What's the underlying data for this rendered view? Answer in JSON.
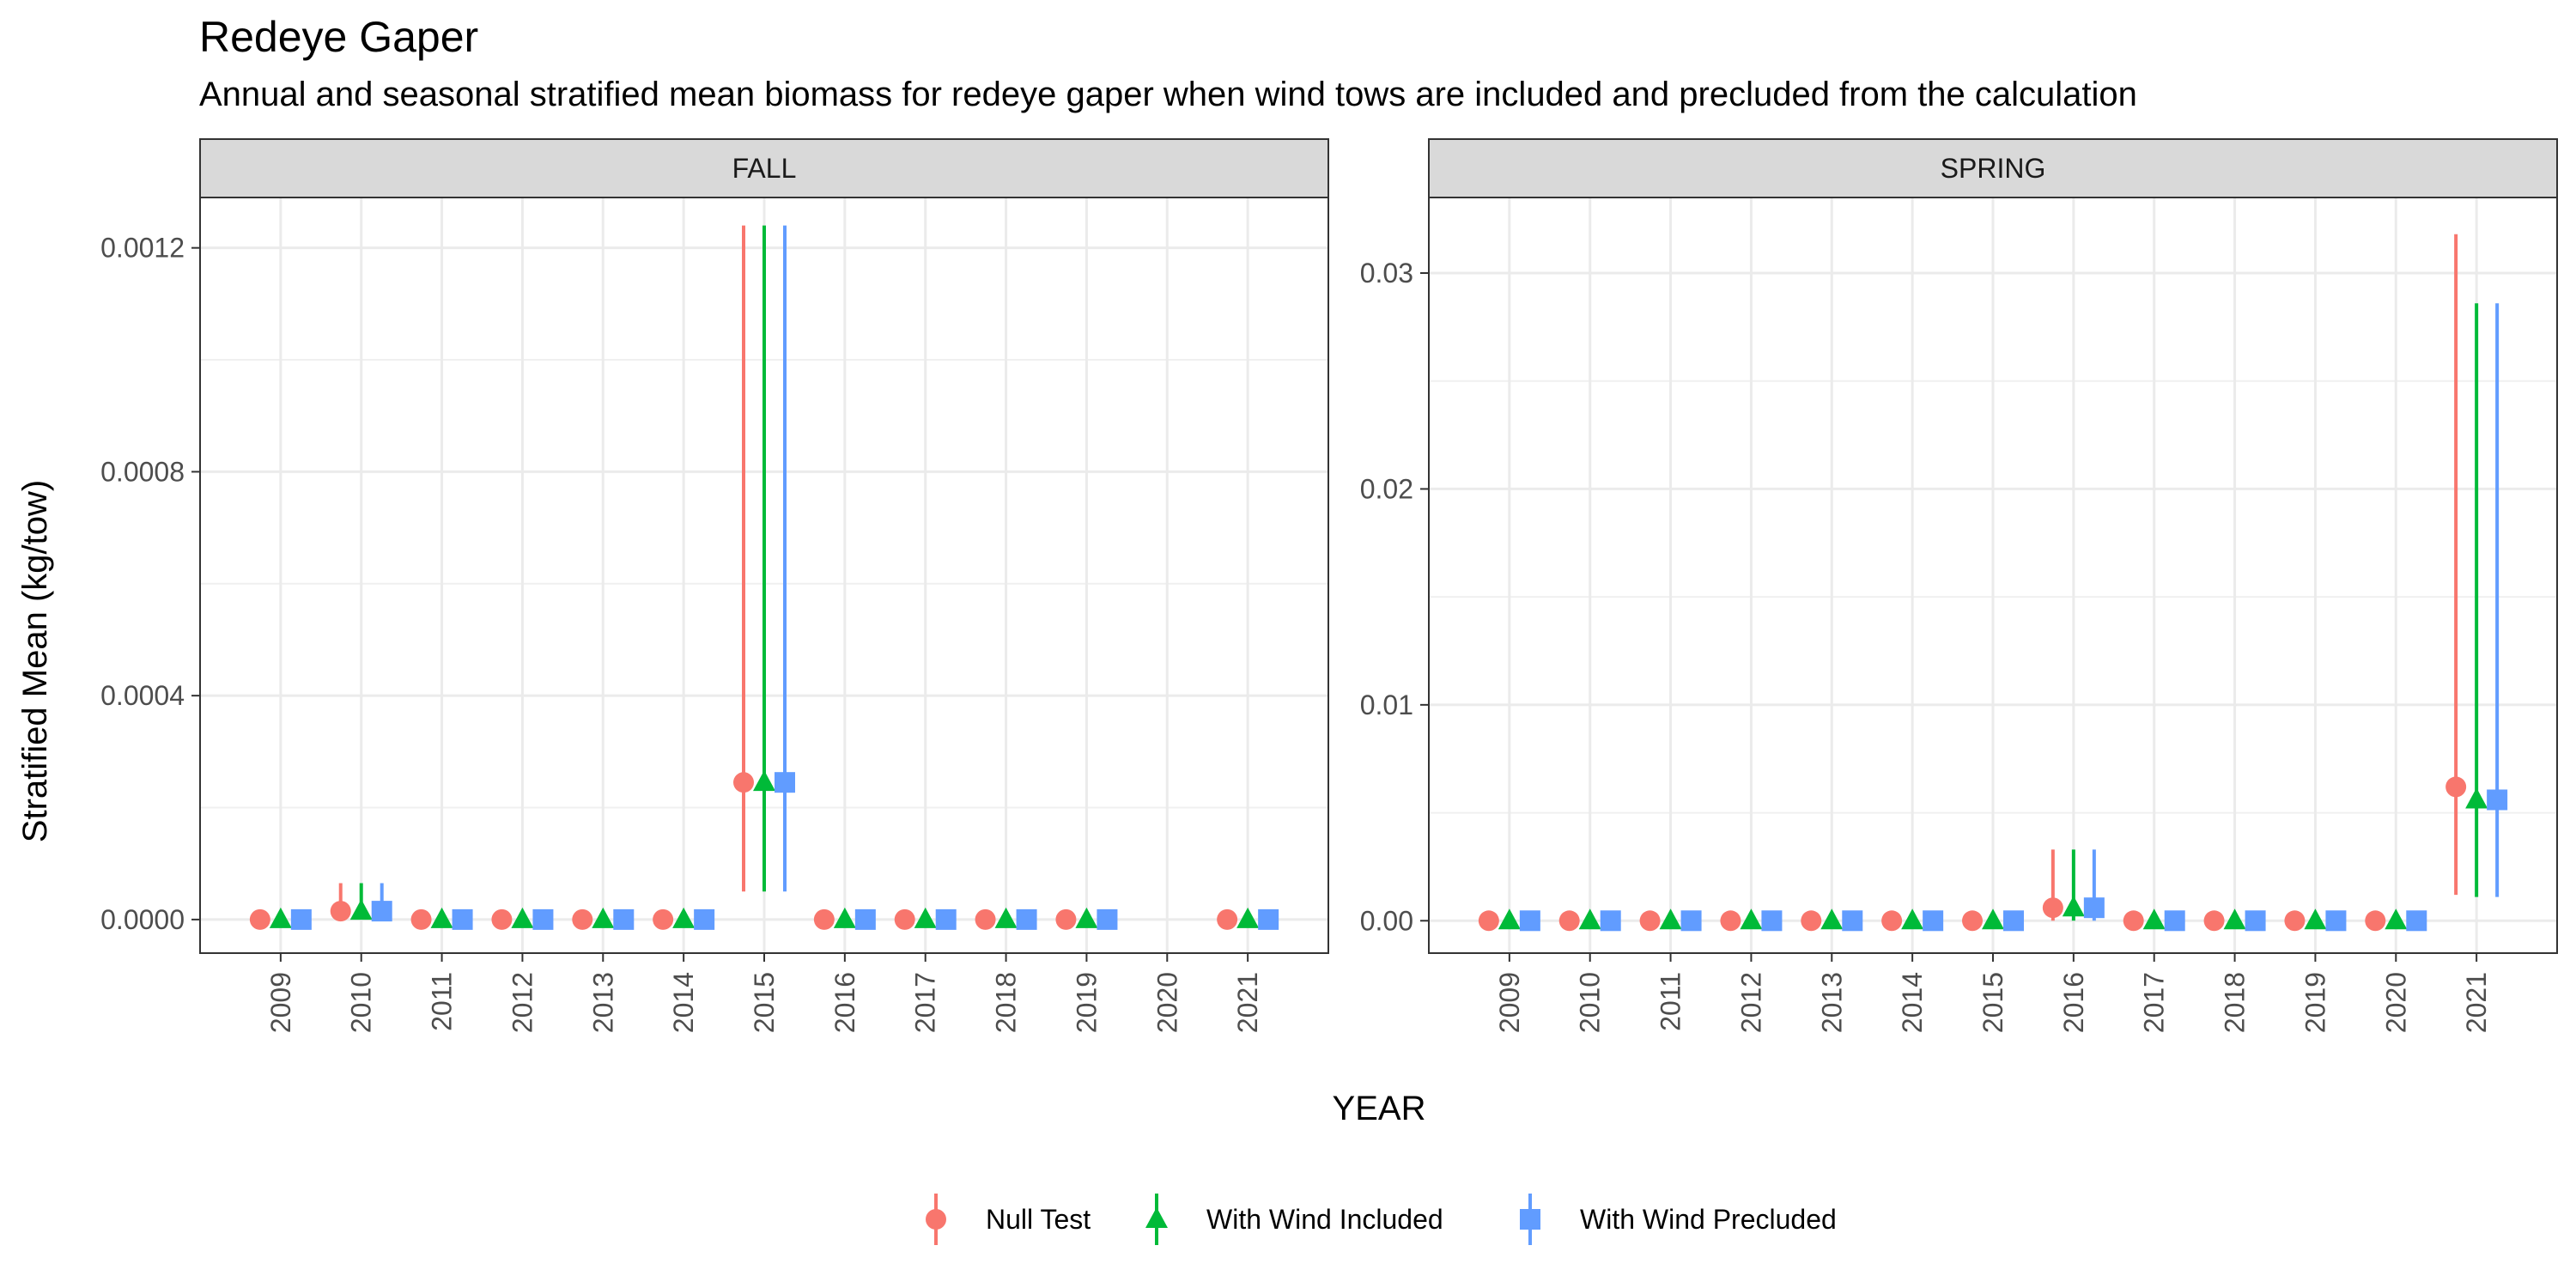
{
  "title": "Redeye Gaper",
  "subtitle": "Annual and seasonal stratified mean biomass for redeye gaper when wind tows are included and precluded from the calculation",
  "chart_data": {
    "type": "scatter",
    "error_bars": true,
    "xlabel": "YEAR",
    "ylabel": "Stratified Mean (kg/tow)",
    "series": [
      {
        "name": "Null Test",
        "color": "#F8766D",
        "shape": "circle"
      },
      {
        "name": "With Wind Included",
        "color": "#00BA38",
        "shape": "triangle"
      },
      {
        "name": "With Wind Precluded",
        "color": "#619CFF",
        "shape": "square"
      }
    ],
    "legend_position": "bottom",
    "grid": true,
    "panels": [
      {
        "strip": "FALL",
        "x": [
          "2009",
          "2010",
          "2011",
          "2012",
          "2013",
          "2014",
          "2015",
          "2016",
          "2017",
          "2018",
          "2019",
          "2020",
          "2021"
        ],
        "ylim": [
          -6e-05,
          0.00129
        ],
        "yticks": [
          0,
          0.0004,
          0.0008,
          0.0012
        ],
        "ytick_labels": [
          "0.0000",
          "0.0004",
          "0.0008",
          "0.0012"
        ],
        "values": {
          "Null Test": [
            {
              "x": "2009",
              "y": 0,
              "lo": 0,
              "hi": 0
            },
            {
              "x": "2010",
              "y": 1.5e-05,
              "lo": 0,
              "hi": 6.5e-05
            },
            {
              "x": "2011",
              "y": 0,
              "lo": 0,
              "hi": 0
            },
            {
              "x": "2012",
              "y": 0,
              "lo": 0,
              "hi": 0
            },
            {
              "x": "2013",
              "y": 0,
              "lo": 0,
              "hi": 0
            },
            {
              "x": "2014",
              "y": 0,
              "lo": 0,
              "hi": 0
            },
            {
              "x": "2015",
              "y": 0.000245,
              "lo": 5e-05,
              "hi": 0.00124
            },
            {
              "x": "2016",
              "y": 0,
              "lo": 0,
              "hi": 0
            },
            {
              "x": "2017",
              "y": 0,
              "lo": 0,
              "hi": 0
            },
            {
              "x": "2018",
              "y": 0,
              "lo": 0,
              "hi": 0
            },
            {
              "x": "2019",
              "y": 0,
              "lo": 0,
              "hi": 0
            },
            {
              "x": "2021",
              "y": 0,
              "lo": 0,
              "hi": 0
            }
          ],
          "With Wind Included": [
            {
              "x": "2009",
              "y": 0,
              "lo": 0,
              "hi": 0
            },
            {
              "x": "2010",
              "y": 1.5e-05,
              "lo": 0,
              "hi": 6.5e-05
            },
            {
              "x": "2011",
              "y": 0,
              "lo": 0,
              "hi": 0
            },
            {
              "x": "2012",
              "y": 0,
              "lo": 0,
              "hi": 0
            },
            {
              "x": "2013",
              "y": 0,
              "lo": 0,
              "hi": 0
            },
            {
              "x": "2014",
              "y": 0,
              "lo": 0,
              "hi": 0
            },
            {
              "x": "2015",
              "y": 0.000245,
              "lo": 5e-05,
              "hi": 0.00124
            },
            {
              "x": "2016",
              "y": 0,
              "lo": 0,
              "hi": 0
            },
            {
              "x": "2017",
              "y": 0,
              "lo": 0,
              "hi": 0
            },
            {
              "x": "2018",
              "y": 0,
              "lo": 0,
              "hi": 0
            },
            {
              "x": "2019",
              "y": 0,
              "lo": 0,
              "hi": 0
            },
            {
              "x": "2021",
              "y": 0,
              "lo": 0,
              "hi": 0
            }
          ],
          "With Wind Precluded": [
            {
              "x": "2009",
              "y": 0,
              "lo": 0,
              "hi": 0
            },
            {
              "x": "2010",
              "y": 1.5e-05,
              "lo": 0,
              "hi": 6.5e-05
            },
            {
              "x": "2011",
              "y": 0,
              "lo": 0,
              "hi": 0
            },
            {
              "x": "2012",
              "y": 0,
              "lo": 0,
              "hi": 0
            },
            {
              "x": "2013",
              "y": 0,
              "lo": 0,
              "hi": 0
            },
            {
              "x": "2014",
              "y": 0,
              "lo": 0,
              "hi": 0
            },
            {
              "x": "2015",
              "y": 0.000245,
              "lo": 5e-05,
              "hi": 0.00124
            },
            {
              "x": "2016",
              "y": 0,
              "lo": 0,
              "hi": 0
            },
            {
              "x": "2017",
              "y": 0,
              "lo": 0,
              "hi": 0
            },
            {
              "x": "2018",
              "y": 0,
              "lo": 0,
              "hi": 0
            },
            {
              "x": "2019",
              "y": 0,
              "lo": 0,
              "hi": 0
            },
            {
              "x": "2021",
              "y": 0,
              "lo": 0,
              "hi": 0
            }
          ]
        }
      },
      {
        "strip": "SPRING",
        "x": [
          "2009",
          "2010",
          "2011",
          "2012",
          "2013",
          "2014",
          "2015",
          "2016",
          "2017",
          "2018",
          "2019",
          "2020",
          "2021"
        ],
        "ylim": [
          -0.0015,
          0.0335
        ],
        "yticks": [
          0,
          0.01,
          0.02,
          0.03
        ],
        "ytick_labels": [
          "0.00",
          "0.01",
          "0.02",
          "0.03"
        ],
        "values": {
          "Null Test": [
            {
              "x": "2009",
              "y": 0,
              "lo": 0,
              "hi": 0
            },
            {
              "x": "2010",
              "y": 0,
              "lo": 0,
              "hi": 0
            },
            {
              "x": "2011",
              "y": 0,
              "lo": 0,
              "hi": 0
            },
            {
              "x": "2012",
              "y": 0,
              "lo": 0,
              "hi": 0
            },
            {
              "x": "2013",
              "y": 0,
              "lo": 0,
              "hi": 0
            },
            {
              "x": "2014",
              "y": 0,
              "lo": 0,
              "hi": 0
            },
            {
              "x": "2015",
              "y": 0,
              "lo": 0,
              "hi": 0
            },
            {
              "x": "2016",
              "y": 0.0006,
              "lo": 0,
              "hi": 0.0033
            },
            {
              "x": "2017",
              "y": 0,
              "lo": 0,
              "hi": 0
            },
            {
              "x": "2018",
              "y": 0,
              "lo": 0,
              "hi": 0
            },
            {
              "x": "2019",
              "y": 0,
              "lo": 0,
              "hi": 0
            },
            {
              "x": "2020",
              "y": 0,
              "lo": 0,
              "hi": 0
            },
            {
              "x": "2021",
              "y": 0.0062,
              "lo": 0.0012,
              "hi": 0.0318
            }
          ],
          "With Wind Included": [
            {
              "x": "2009",
              "y": 0,
              "lo": 0,
              "hi": 0
            },
            {
              "x": "2010",
              "y": 0,
              "lo": 0,
              "hi": 0
            },
            {
              "x": "2011",
              "y": 0,
              "lo": 0,
              "hi": 0
            },
            {
              "x": "2012",
              "y": 0,
              "lo": 0,
              "hi": 0
            },
            {
              "x": "2013",
              "y": 0,
              "lo": 0,
              "hi": 0
            },
            {
              "x": "2014",
              "y": 0,
              "lo": 0,
              "hi": 0
            },
            {
              "x": "2015",
              "y": 0,
              "lo": 0,
              "hi": 0
            },
            {
              "x": "2016",
              "y": 0.0006,
              "lo": 0,
              "hi": 0.0033
            },
            {
              "x": "2017",
              "y": 0,
              "lo": 0,
              "hi": 0
            },
            {
              "x": "2018",
              "y": 0,
              "lo": 0,
              "hi": 0
            },
            {
              "x": "2019",
              "y": 0,
              "lo": 0,
              "hi": 0
            },
            {
              "x": "2020",
              "y": 0,
              "lo": 0,
              "hi": 0
            },
            {
              "x": "2021",
              "y": 0.0056,
              "lo": 0.0011,
              "hi": 0.0286
            }
          ],
          "With Wind Precluded": [
            {
              "x": "2009",
              "y": 0,
              "lo": 0,
              "hi": 0
            },
            {
              "x": "2010",
              "y": 0,
              "lo": 0,
              "hi": 0
            },
            {
              "x": "2011",
              "y": 0,
              "lo": 0,
              "hi": 0
            },
            {
              "x": "2012",
              "y": 0,
              "lo": 0,
              "hi": 0
            },
            {
              "x": "2013",
              "y": 0,
              "lo": 0,
              "hi": 0
            },
            {
              "x": "2014",
              "y": 0,
              "lo": 0,
              "hi": 0
            },
            {
              "x": "2015",
              "y": 0,
              "lo": 0,
              "hi": 0
            },
            {
              "x": "2016",
              "y": 0.0006,
              "lo": 0,
              "hi": 0.0033
            },
            {
              "x": "2017",
              "y": 0,
              "lo": 0,
              "hi": 0
            },
            {
              "x": "2018",
              "y": 0,
              "lo": 0,
              "hi": 0
            },
            {
              "x": "2019",
              "y": 0,
              "lo": 0,
              "hi": 0
            },
            {
              "x": "2020",
              "y": 0,
              "lo": 0,
              "hi": 0
            },
            {
              "x": "2021",
              "y": 0.0056,
              "lo": 0.0011,
              "hi": 0.0286
            }
          ]
        }
      }
    ]
  }
}
